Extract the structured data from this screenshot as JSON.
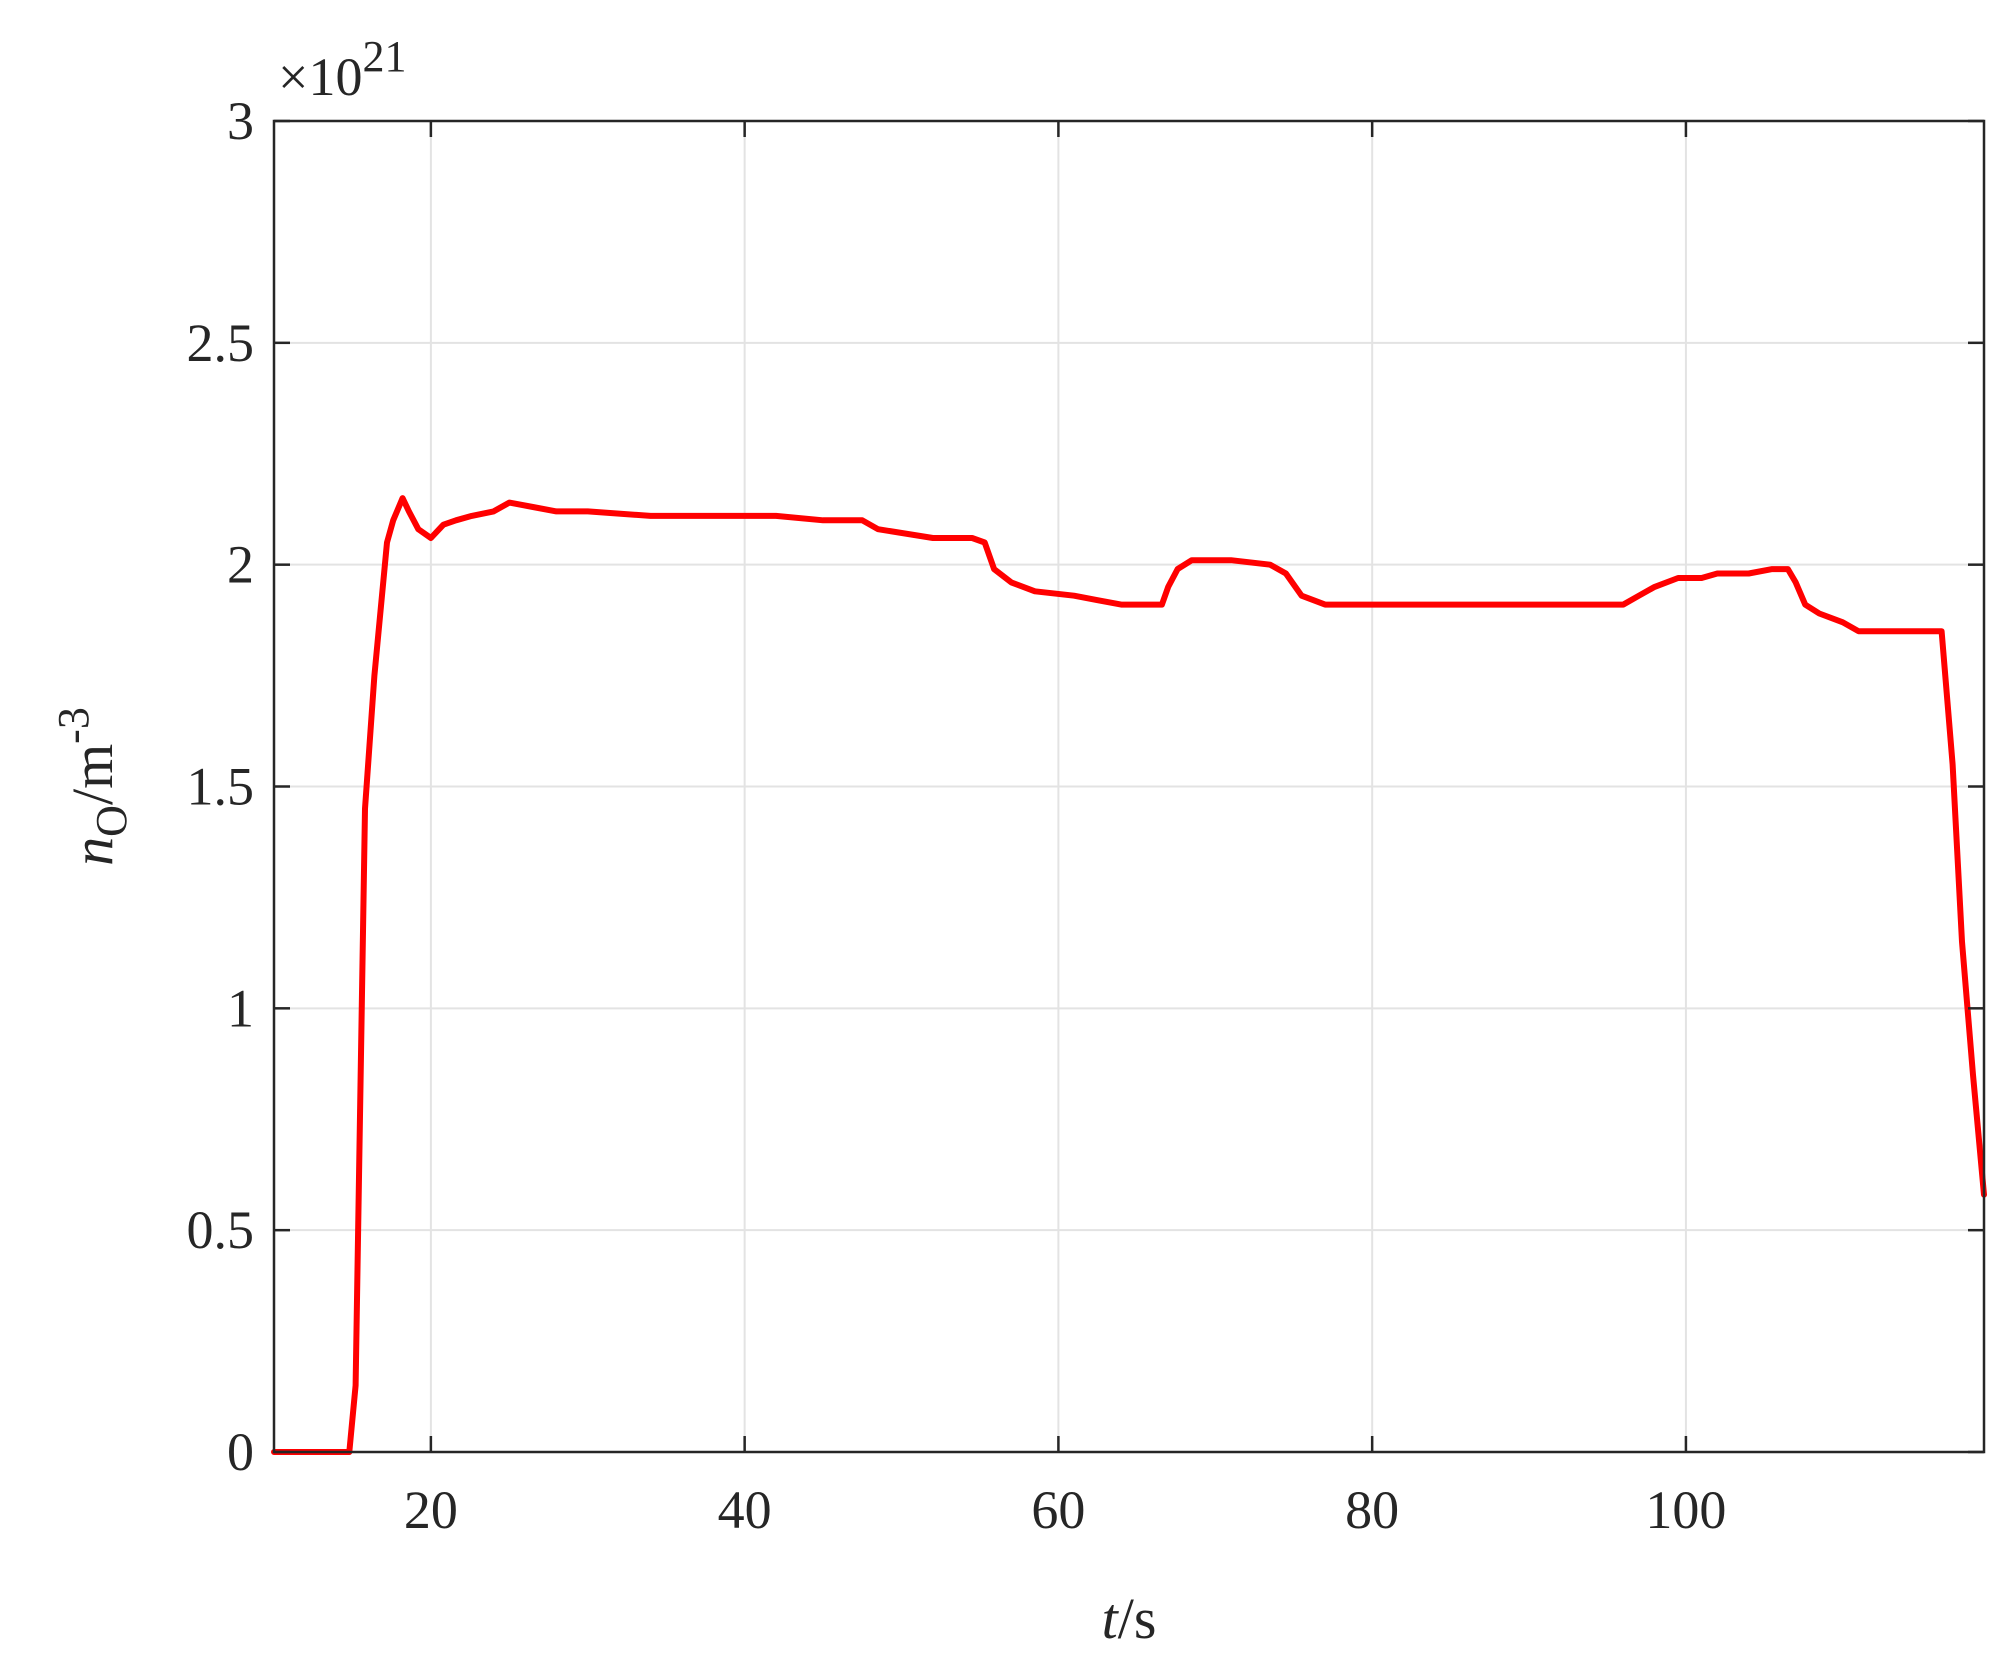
{
  "chart_data": {
    "type": "line",
    "title": "",
    "xlabel": {
      "var": "t",
      "unit": "/s"
    },
    "ylabel": {
      "var": "n",
      "sub": "O",
      "unit": "/m",
      "sup": "-3"
    },
    "y_multiplier": {
      "base": "×10",
      "exp": "21"
    },
    "xlim": [
      10,
      119
    ],
    "ylim": [
      0,
      3
    ],
    "xticks": [
      20,
      40,
      60,
      80,
      100
    ],
    "xtick_labels": [
      "20",
      "40",
      "60",
      "80",
      "100"
    ],
    "yticks": [
      0,
      0.5,
      1,
      1.5,
      2,
      2.5,
      3
    ],
    "ytick_labels": [
      "0",
      "0.5",
      "1",
      "1.5",
      "2",
      "2.5",
      "3"
    ],
    "grid": true,
    "series": [
      {
        "color": "#ff0000",
        "x": [
          10,
          12,
          14,
          14.8,
          15.2,
          15.8,
          16.4,
          17.2,
          17.6,
          18.2,
          18.6,
          19.2,
          20,
          20.8,
          21.6,
          22.6,
          24,
          25,
          26.5,
          28,
          30,
          34,
          38,
          42,
          45,
          47.5,
          48.5,
          52,
          54.5,
          55.3,
          55.9,
          57,
          58.5,
          61,
          62.5,
          64,
          65,
          66.6,
          67,
          67.6,
          68.5,
          71,
          73.5,
          74.5,
          75.5,
          77,
          80,
          85,
          90,
          93,
          96,
          97,
          98,
          99.5,
          101,
          102,
          104,
          105.5,
          106.5,
          107,
          107.6,
          108.5,
          110,
          111,
          112,
          115,
          116.3,
          117,
          117.6,
          118.3,
          119
        ],
        "y": [
          0.0,
          0.0,
          0.0,
          0.0,
          0.15,
          1.45,
          1.75,
          2.05,
          2.1,
          2.15,
          2.12,
          2.08,
          2.06,
          2.09,
          2.1,
          2.11,
          2.12,
          2.14,
          2.13,
          2.12,
          2.12,
          2.11,
          2.11,
          2.11,
          2.1,
          2.1,
          2.08,
          2.06,
          2.06,
          2.05,
          1.99,
          1.96,
          1.94,
          1.93,
          1.92,
          1.91,
          1.91,
          1.91,
          1.95,
          1.99,
          2.01,
          2.01,
          2.0,
          1.98,
          1.93,
          1.91,
          1.91,
          1.91,
          1.91,
          1.91,
          1.91,
          1.93,
          1.95,
          1.97,
          1.97,
          1.98,
          1.98,
          1.99,
          1.99,
          1.96,
          1.91,
          1.89,
          1.87,
          1.85,
          1.85,
          1.85,
          1.85,
          1.55,
          1.15,
          0.85,
          0.58
        ]
      }
    ]
  }
}
